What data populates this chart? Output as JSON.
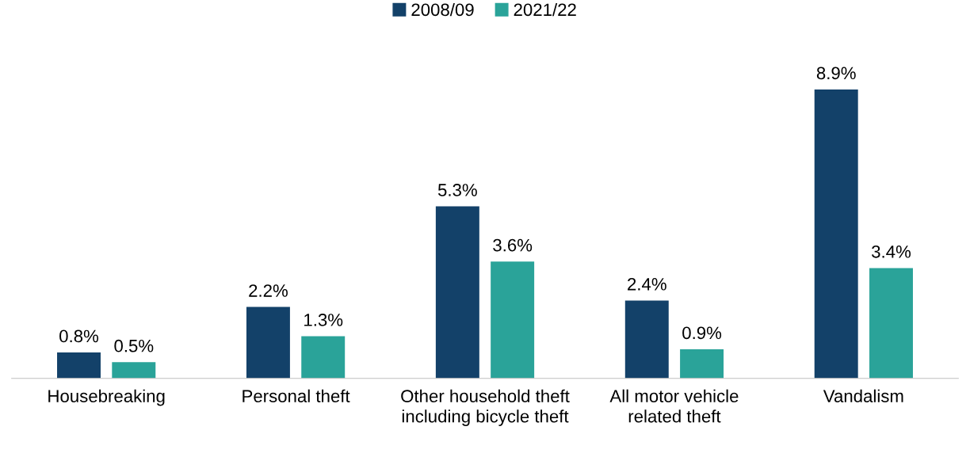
{
  "chart_data": {
    "type": "bar",
    "categories": [
      "Housebreaking",
      "Personal theft",
      "Other household theft including bicycle theft",
      "All motor vehicle related theft",
      "Vandalism"
    ],
    "series": [
      {
        "name": "2008/09",
        "color": "#134169",
        "values": [
          0.8,
          2.2,
          5.3,
          2.4,
          8.9
        ],
        "value_labels": [
          "0.8%",
          "2.2%",
          "5.3%",
          "2.4%",
          "8.9%"
        ]
      },
      {
        "name": "2021/22",
        "color": "#2aa399",
        "values": [
          0.5,
          1.3,
          3.6,
          0.9,
          3.4
        ],
        "value_labels": [
          "0.5%",
          "1.3%",
          "3.6%",
          "0.9%",
          "3.4%"
        ]
      }
    ],
    "legend": "top",
    "grid": false,
    "tick_labels": "x"
  }
}
